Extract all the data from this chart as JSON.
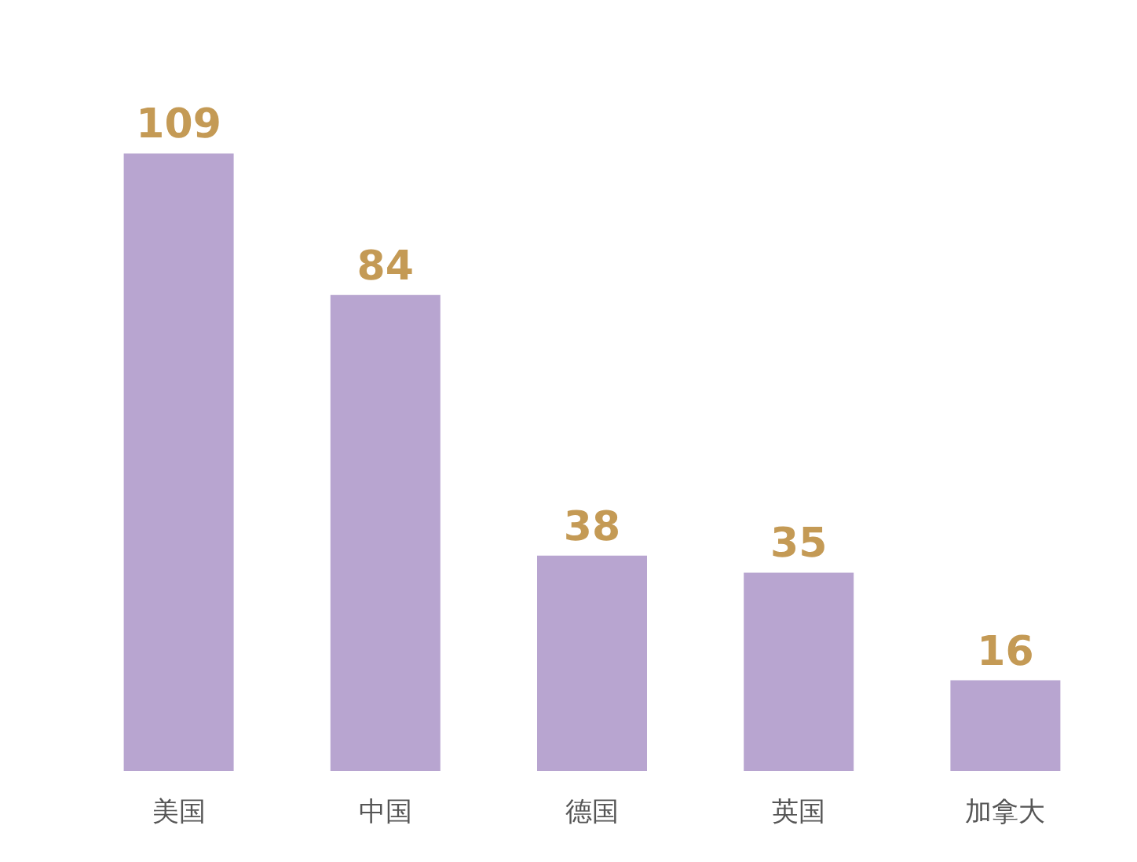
{
  "chart_data": {
    "type": "bar",
    "categories": [
      "美国",
      "中国",
      "德国",
      "英国",
      "加拿大"
    ],
    "values": [
      109,
      84,
      38,
      35,
      16
    ],
    "color": "#b8a5d0",
    "data_labels": true
  }
}
